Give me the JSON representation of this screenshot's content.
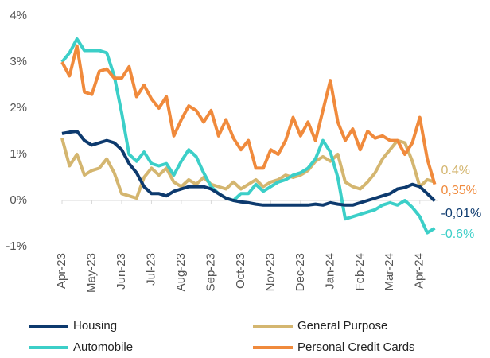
{
  "chart_data": {
    "type": "line",
    "categories": [
      "Apr-23",
      null,
      null,
      null,
      "May-23",
      null,
      null,
      null,
      "Jun-23",
      null,
      null,
      null,
      "Jul-23",
      null,
      null,
      null,
      "Aug-23",
      null,
      null,
      null,
      "Sep-23",
      null,
      null,
      null,
      "Oct-23",
      null,
      null,
      null,
      "Nov-23",
      null,
      null,
      null,
      "Dec-23",
      null,
      null,
      null,
      "Jan-24",
      null,
      null,
      null,
      "Feb-24",
      null,
      null,
      null,
      "Mar-24",
      null,
      null,
      null,
      "Apr-24",
      null,
      null
    ],
    "series": [
      {
        "name": "Housing",
        "color": "#0d3a6e",
        "end_label": "-0,01%",
        "values": [
          1.45,
          1.48,
          1.5,
          1.3,
          1.2,
          1.25,
          1.3,
          1.25,
          1.1,
          0.8,
          0.6,
          0.3,
          0.15,
          0.15,
          0.1,
          0.2,
          0.25,
          0.3,
          0.3,
          0.3,
          0.25,
          0.15,
          0.05,
          0.0,
          -0.03,
          -0.05,
          -0.08,
          -0.1,
          -0.1,
          -0.1,
          -0.1,
          -0.1,
          -0.1,
          -0.1,
          -0.08,
          -0.1,
          -0.05,
          -0.08,
          -0.1,
          -0.1,
          -0.05,
          0,
          0.05,
          0.1,
          0.15,
          0.25,
          0.28,
          0.35,
          0.3,
          0.15,
          -0.01
        ]
      },
      {
        "name": "General Purpose",
        "color": "#d4b670",
        "end_label": "0.4%",
        "values": [
          1.35,
          0.75,
          1.0,
          0.55,
          0.65,
          0.7,
          0.9,
          0.6,
          0.15,
          0.1,
          0.05,
          0.5,
          0.7,
          0.55,
          0.7,
          0.4,
          0.3,
          0.45,
          0.35,
          0.5,
          0.35,
          0.3,
          0.25,
          0.4,
          0.25,
          0.35,
          0.45,
          0.3,
          0.4,
          0.45,
          0.55,
          0.5,
          0.55,
          0.65,
          0.85,
          0.95,
          0.85,
          1.0,
          0.4,
          0.3,
          0.25,
          0.4,
          0.6,
          0.9,
          1.1,
          1.3,
          1.25,
          0.85,
          0.3,
          0.45,
          0.4
        ]
      },
      {
        "name": "Automobile",
        "color": "#3ccfc8",
        "end_label": "-0.6%",
        "values": [
          3.0,
          3.2,
          3.5,
          3.25,
          3.25,
          3.25,
          3.2,
          2.7,
          1.9,
          1.0,
          0.85,
          1.05,
          0.8,
          0.75,
          0.8,
          0.55,
          0.85,
          1.1,
          0.95,
          0.6,
          0.3,
          0.15,
          0.05,
          0.0,
          0.15,
          0.15,
          0.35,
          0.2,
          0.3,
          0.4,
          0.45,
          0.55,
          0.6,
          0.7,
          0.9,
          1.3,
          1.05,
          0.5,
          -0.4,
          -0.35,
          -0.3,
          -0.25,
          -0.2,
          -0.1,
          -0.05,
          -0.1,
          0,
          -0.15,
          -0.35,
          -0.7,
          -0.6
        ]
      },
      {
        "name": "Personal Credit Cards",
        "color": "#f08a3c",
        "end_label": "0,35%",
        "values": [
          3.0,
          2.7,
          3.35,
          2.35,
          2.3,
          2.8,
          2.85,
          2.65,
          2.65,
          2.9,
          2.25,
          2.5,
          2.2,
          2.0,
          2.25,
          1.4,
          1.75,
          2.05,
          1.95,
          1.7,
          1.95,
          1.4,
          1.75,
          1.35,
          1.1,
          1.3,
          0.7,
          0.7,
          1.1,
          1.0,
          1.3,
          1.8,
          1.4,
          1.7,
          1.3,
          1.95,
          2.6,
          1.7,
          1.3,
          1.55,
          1.1,
          1.5,
          1.35,
          1.4,
          1.3,
          1.3,
          1.0,
          1.25,
          1.8,
          0.9,
          0.35
        ]
      }
    ],
    "ylim": [
      -1,
      4
    ],
    "yticks": [
      {
        "value": -1,
        "label": "-1%"
      },
      {
        "value": 0,
        "label": "0%"
      },
      {
        "value": 1,
        "label": "1%"
      },
      {
        "value": 2,
        "label": "2%"
      },
      {
        "value": 3,
        "label": "3%"
      },
      {
        "value": 4,
        "label": "4%"
      }
    ]
  }
}
